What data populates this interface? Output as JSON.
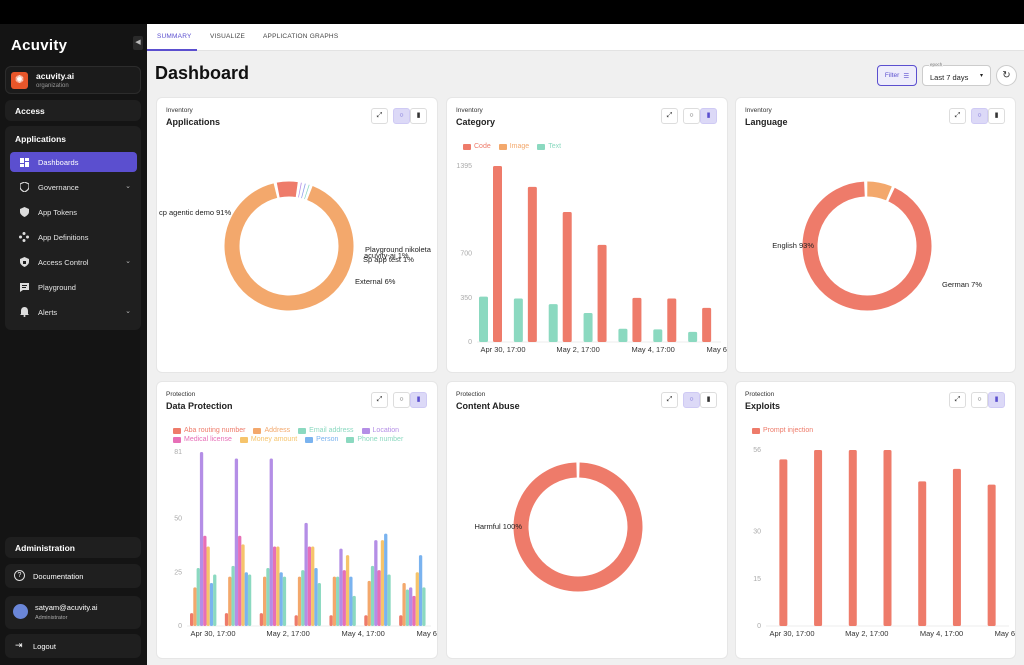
{
  "app": {
    "logo": "Acuvity"
  },
  "org": {
    "name": "acuvity.ai",
    "type": "organization"
  },
  "sidebar": {
    "access": "Access",
    "applications": "Applications",
    "items": [
      {
        "label": "Dashboards",
        "icon": "dashboard-icon",
        "active": true
      },
      {
        "label": "Governance",
        "icon": "shield-icon",
        "expandable": true
      },
      {
        "label": "App Tokens",
        "icon": "token-icon"
      },
      {
        "label": "App Definitions",
        "icon": "definitions-icon"
      },
      {
        "label": "Access Control",
        "icon": "lock-shield-icon",
        "expandable": true
      },
      {
        "label": "Playground",
        "icon": "chat-icon"
      },
      {
        "label": "Alerts",
        "icon": "bell-icon",
        "expandable": true
      }
    ],
    "administration": "Administration",
    "documentation": "Documentation",
    "user_email": "satyam@acuvity.ai",
    "user_role": "Administrator",
    "logout": "Logout"
  },
  "tabs": [
    "SUMMARY",
    "VISUALIZE",
    "APPLICATION GRAPHS"
  ],
  "header": {
    "title": "Dashboard",
    "filter": "Filter",
    "epoch_label": "epoch",
    "epoch_value": "Last 7 days"
  },
  "colors": {
    "accent": "#5b4fcf",
    "salmon": "#ee7b6a",
    "orange": "#f3a86c",
    "mint": "#8bd9c0",
    "purple": "#b48ee6"
  },
  "cards": {
    "applications": {
      "category": "Inventory",
      "title": "Applications"
    },
    "category": {
      "category": "Inventory",
      "title": "Category"
    },
    "language": {
      "category": "Inventory",
      "title": "Language"
    },
    "data_protection": {
      "category": "Protection",
      "title": "Data Protection"
    },
    "content_abuse": {
      "category": "Protection",
      "title": "Content Abuse"
    },
    "exploits": {
      "category": "Protection",
      "title": "Exploits"
    }
  },
  "chart_data": [
    {
      "id": "applications",
      "type": "pie",
      "slices": [
        {
          "label": "cp agentic demo 91%",
          "value": 91,
          "color": "#f3a86c"
        },
        {
          "label": "External 6%",
          "value": 6,
          "color": "#ee7b6a"
        },
        {
          "label": "Sp app test 1%",
          "value": 1,
          "color": "#b48ee6"
        },
        {
          "label": "acuvity-ai 1%",
          "value": 1,
          "color": "#8a9be8"
        },
        {
          "label": "Playground nikoleta",
          "value": 1,
          "color": "#8bd9c0"
        }
      ]
    },
    {
      "id": "category",
      "type": "bar",
      "ylim": [
        0,
        1395
      ],
      "yticks": [
        "1395",
        "700",
        "350",
        "0"
      ],
      "xticks": [
        "Apr 30, 17:00",
        "May 2, 17:00",
        "May 4, 17:00",
        "May 6, 17:00"
      ],
      "series": [
        {
          "name": "Code",
          "color": "#ee7b6a",
          "values": [
            1395,
            1230,
            1030,
            770,
            350,
            345,
            270
          ]
        },
        {
          "name": "Image",
          "color": "#f3a86c",
          "values": [
            0,
            0,
            0,
            0,
            0,
            0,
            0
          ]
        },
        {
          "name": "Text",
          "color": "#8bd9c0",
          "values": [
            360,
            345,
            300,
            230,
            105,
            100,
            80
          ]
        }
      ]
    },
    {
      "id": "language",
      "type": "pie",
      "slices": [
        {
          "label": "English 93%",
          "value": 93,
          "color": "#ee7b6a"
        },
        {
          "label": "German 7%",
          "value": 7,
          "color": "#f3a86c"
        }
      ]
    },
    {
      "id": "data_protection",
      "type": "bar",
      "ylim": [
        0,
        81
      ],
      "yticks": [
        "81",
        "50",
        "25",
        "0"
      ],
      "xticks": [
        "Apr 30, 17:00",
        "May 2, 17:00",
        "May 4, 17:00",
        "May 6, 17:00"
      ],
      "series": [
        {
          "name": "Aba routing number",
          "color": "#ee7b6a",
          "values": [
            6,
            6,
            6,
            5,
            5,
            5,
            5
          ]
        },
        {
          "name": "Address",
          "color": "#f3a86c",
          "values": [
            18,
            23,
            23,
            23,
            23,
            21,
            20
          ]
        },
        {
          "name": "Email address",
          "color": "#8bd9c0",
          "values": [
            27,
            28,
            27,
            26,
            23,
            28,
            17
          ]
        },
        {
          "name": "Location",
          "color": "#b48ee6",
          "values": [
            81,
            78,
            78,
            48,
            36,
            40,
            18
          ]
        },
        {
          "name": "Medical license",
          "color": "#e76fb7",
          "values": [
            42,
            42,
            37,
            37,
            26,
            26,
            14
          ]
        },
        {
          "name": "Money amount",
          "color": "#f6c46b",
          "values": [
            37,
            38,
            37,
            37,
            33,
            40,
            25
          ]
        },
        {
          "name": "Person",
          "color": "#7ab3ef",
          "values": [
            20,
            25,
            25,
            27,
            23,
            43,
            33
          ]
        },
        {
          "name": "Phone number",
          "color": "#8bd9c0",
          "values": [
            24,
            24,
            23,
            20,
            14,
            24,
            18
          ]
        }
      ]
    },
    {
      "id": "content_abuse",
      "type": "pie",
      "slices": [
        {
          "label": "Harmful 100%",
          "value": 100,
          "color": "#ee7b6a"
        }
      ]
    },
    {
      "id": "exploits",
      "type": "bar",
      "ylim": [
        0,
        56
      ],
      "yticks": [
        "56",
        "30",
        "15",
        "0"
      ],
      "xticks": [
        "Apr 30, 17:00",
        "May 2, 17:00",
        "May 4, 17:00",
        "May 6, 17:00"
      ],
      "series": [
        {
          "name": "Prompt injection",
          "color": "#ee7b6a",
          "values": [
            53,
            56,
            56,
            56,
            46,
            50,
            45
          ]
        }
      ]
    }
  ]
}
